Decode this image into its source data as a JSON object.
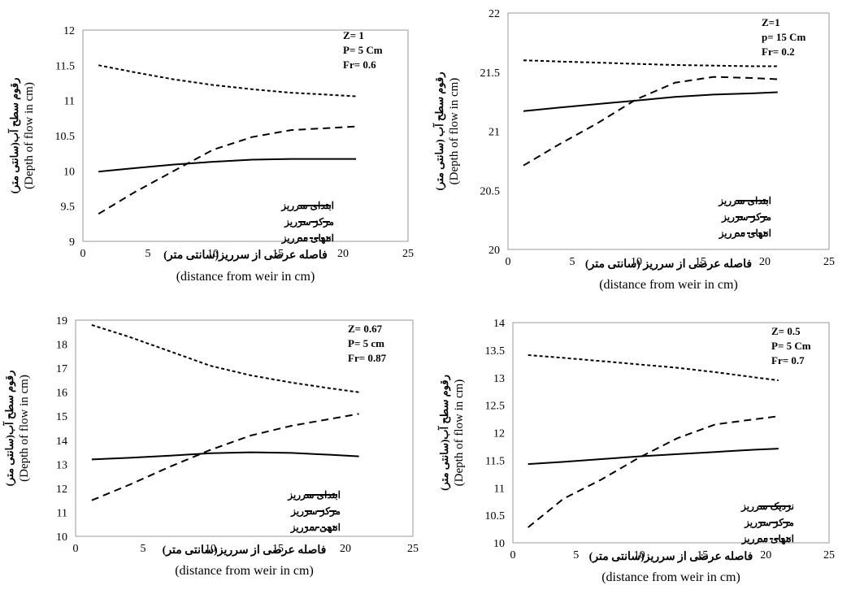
{
  "chart_data": [
    {
      "type": "line",
      "xlim": [
        0,
        25
      ],
      "xticks": [
        0,
        5,
        10,
        15,
        20,
        25
      ],
      "ylim": [
        9,
        12
      ],
      "yticks": [
        9,
        9.5,
        10,
        10.5,
        11,
        11.5,
        12
      ],
      "xlabel": "فاصله عرضی از سرریز(سانتی متر)",
      "xlabel_en": "(distance from weir in cm)",
      "ylabel": "رقوم سطح آب(سانتی متر)",
      "ylabel_en": "(Depth of  flow in cm)",
      "annotation": [
        "Z= 1",
        "P= 5 Cm",
        "Fr= 0.6"
      ],
      "legend_position": "bottom-right",
      "series": [
        {
          "name": "ابتدای سرریز",
          "style": "solid",
          "x": [
            1.2,
            4,
            7,
            10,
            13,
            16,
            19,
            21
          ],
          "y": [
            9.99,
            10.04,
            10.09,
            10.13,
            10.16,
            10.17,
            10.17,
            10.17
          ]
        },
        {
          "name": "مرکز سرریز",
          "style": "dashed",
          "x": [
            1.2,
            4,
            7,
            10,
            13,
            16,
            19,
            21
          ],
          "y": [
            9.39,
            9.7,
            10.0,
            10.3,
            10.48,
            10.58,
            10.61,
            10.63
          ]
        },
        {
          "name": "انتهای سرریز",
          "style": "dotted",
          "x": [
            1.2,
            4,
            7,
            10,
            13,
            16,
            19,
            21
          ],
          "y": [
            11.5,
            11.4,
            11.3,
            11.22,
            11.16,
            11.11,
            11.08,
            11.06
          ]
        }
      ]
    },
    {
      "type": "line",
      "xlim": [
        0,
        25
      ],
      "xticks": [
        0,
        5,
        10,
        15,
        20,
        25
      ],
      "ylim": [
        20,
        22
      ],
      "yticks": [
        20,
        20.5,
        21,
        21.5,
        22
      ],
      "xlabel": "فاصله عرضی از سرریز (سانتی متر)",
      "xlabel_en": "(distance from weir in cm)",
      "ylabel": "رقوم سطح آب (سانتی متر)",
      "ylabel_en": "(Depth of  flow in cm)",
      "annotation": [
        "Z=1",
        "p= 15 Cm",
        "Fr= 0.2"
      ],
      "legend_position": "bottom-right",
      "series": [
        {
          "name": "ابتدای سرریز",
          "style": "solid",
          "x": [
            1.2,
            4,
            7,
            10,
            13,
            16,
            19,
            21
          ],
          "y": [
            21.17,
            21.2,
            21.23,
            21.26,
            21.29,
            21.31,
            21.32,
            21.33
          ]
        },
        {
          "name": "مرکز سرریز",
          "style": "dashed",
          "x": [
            1.2,
            4,
            7,
            10,
            13,
            16,
            19,
            21
          ],
          "y": [
            20.71,
            20.89,
            21.07,
            21.27,
            21.41,
            21.46,
            21.45,
            21.44
          ]
        },
        {
          "name": "انتهای سرریز",
          "style": "dotted",
          "x": [
            1.2,
            4,
            7,
            10,
            13,
            16,
            19,
            21
          ],
          "y": [
            21.6,
            21.59,
            21.58,
            21.57,
            21.56,
            21.555,
            21.55,
            21.55
          ]
        }
      ]
    },
    {
      "type": "line",
      "xlim": [
        0,
        25
      ],
      "xticks": [
        0,
        5,
        10,
        15,
        20,
        25
      ],
      "ylim": [
        10,
        19
      ],
      "yticks": [
        10,
        11,
        12,
        13,
        14,
        15,
        16,
        17,
        18,
        19
      ],
      "xlabel": "فاصله عرضی از سرریز(سانتی متر)",
      "xlabel_en": "(distance from weir in cm)",
      "ylabel": "رقوم سطح آب(سانتی متر)",
      "ylabel_en": "(Depth of  flow in cm)",
      "annotation": [
        "Z= 0.67",
        "P= 5 cm",
        "Fr= 0.87"
      ],
      "legend_position": "bottom-right",
      "series": [
        {
          "name": "ابتدای سرریز",
          "style": "solid",
          "x": [
            1.2,
            4,
            7,
            10,
            13,
            16,
            19,
            21
          ],
          "y": [
            13.2,
            13.27,
            13.36,
            13.46,
            13.5,
            13.47,
            13.39,
            13.33
          ]
        },
        {
          "name": "مرکز سرریز",
          "style": "dashed",
          "x": [
            1.2,
            4,
            7,
            10,
            13,
            16,
            19,
            21
          ],
          "y": [
            11.5,
            12.15,
            12.9,
            13.6,
            14.2,
            14.6,
            14.9,
            15.1
          ]
        },
        {
          "name": "انتهی سرریز",
          "style": "dotted",
          "x": [
            1.2,
            4,
            7,
            10,
            13,
            16,
            19,
            21
          ],
          "y": [
            18.8,
            18.3,
            17.7,
            17.1,
            16.7,
            16.4,
            16.15,
            16.0
          ]
        }
      ]
    },
    {
      "type": "line",
      "xlim": [
        0,
        25
      ],
      "xticks": [
        0,
        5,
        10,
        15,
        20,
        25
      ],
      "ylim": [
        10,
        14
      ],
      "yticks": [
        10,
        10.5,
        11,
        11.5,
        12,
        12.5,
        13,
        13.5,
        14
      ],
      "xlabel": "فاصله عرضی از سرریز(سانتی متر)",
      "xlabel_en": "(distance from weir in cm)",
      "ylabel": "رقوم سطح آب(سانتی متر)",
      "ylabel_en": "(Depth of  flow in cm)",
      "annotation": [
        "Z= 0.5",
        "P= 5 Cm",
        "Fr= 0.7"
      ],
      "legend_position": "bottom-right",
      "series": [
        {
          "name": "نزدیک سرریز",
          "style": "solid",
          "x": [
            1.2,
            4,
            7,
            10,
            13,
            16,
            19,
            21
          ],
          "y": [
            11.43,
            11.47,
            11.52,
            11.57,
            11.61,
            11.65,
            11.69,
            11.71
          ]
        },
        {
          "name": "مرکز سرریز",
          "style": "dashed",
          "x": [
            1.2,
            4,
            7,
            10,
            13,
            16,
            19,
            21
          ],
          "y": [
            10.28,
            10.8,
            11.15,
            11.55,
            11.9,
            12.15,
            12.24,
            12.3
          ]
        },
        {
          "name": "انتهای سرریز",
          "style": "dotted",
          "x": [
            1.2,
            4,
            7,
            10,
            13,
            16,
            19,
            21
          ],
          "y": [
            13.41,
            13.36,
            13.3,
            13.24,
            13.18,
            13.1,
            13.01,
            12.95
          ]
        }
      ]
    }
  ]
}
